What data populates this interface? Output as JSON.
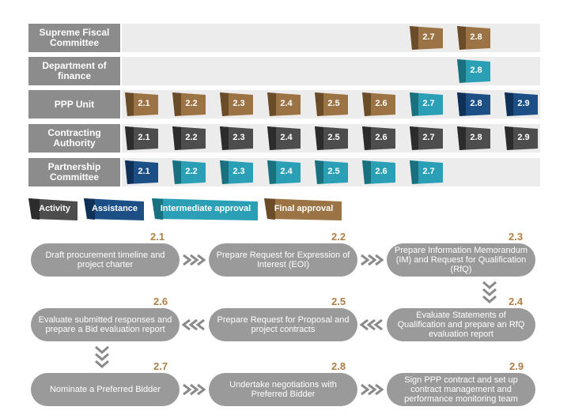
{
  "roles": [
    {
      "label": "Supreme Fiscal Committee",
      "steps": [
        {
          "n": "2.7",
          "type": "final"
        },
        {
          "n": "2.8",
          "type": "final"
        }
      ]
    },
    {
      "label": "Department of finance",
      "steps": [
        {
          "n": "2.8",
          "type": "intermediate"
        }
      ]
    },
    {
      "label": "PPP Unit",
      "steps": [
        {
          "n": "2.1",
          "type": "final"
        },
        {
          "n": "2.2",
          "type": "final"
        },
        {
          "n": "2.3",
          "type": "final"
        },
        {
          "n": "2.4",
          "type": "final"
        },
        {
          "n": "2.5",
          "type": "final"
        },
        {
          "n": "2.6",
          "type": "final"
        },
        {
          "n": "2.7",
          "type": "intermediate"
        },
        {
          "n": "2.8",
          "type": "assistance"
        },
        {
          "n": "2.9",
          "type": "assistance"
        }
      ]
    },
    {
      "label": "Contracting Authority",
      "steps": [
        {
          "n": "2.1",
          "type": "activity"
        },
        {
          "n": "2.2",
          "type": "activity"
        },
        {
          "n": "2.3",
          "type": "activity"
        },
        {
          "n": "2.4",
          "type": "activity"
        },
        {
          "n": "2.5",
          "type": "activity"
        },
        {
          "n": "2.6",
          "type": "activity"
        },
        {
          "n": "2.7",
          "type": "activity"
        },
        {
          "n": "2.8",
          "type": "activity"
        },
        {
          "n": "2.9",
          "type": "activity"
        }
      ]
    },
    {
      "label": "Partnership Committee",
      "steps": [
        {
          "n": "2.1",
          "type": "assistance"
        },
        {
          "n": "2.2",
          "type": "intermediate"
        },
        {
          "n": "2.3",
          "type": "intermediate"
        },
        {
          "n": "2.4",
          "type": "intermediate"
        },
        {
          "n": "2.5",
          "type": "intermediate"
        },
        {
          "n": "2.6",
          "type": "intermediate"
        },
        {
          "n": "2.7",
          "type": "intermediate"
        }
      ]
    }
  ],
  "legend": [
    {
      "key": "activity",
      "label": "Activity"
    },
    {
      "key": "assistance",
      "label": "Assistance"
    },
    {
      "key": "intermediate",
      "label": "Intermediate approval"
    },
    {
      "key": "final",
      "label": "Final approval"
    }
  ],
  "colors": {
    "activity": "#4d4d4d",
    "assistance": "#1c4f86",
    "intermediate": "#2a9fb6",
    "final": "#9b7344",
    "step_number": "#b07f45",
    "pill": "#9a9a9a",
    "chevron": "#8a8a8a"
  },
  "process": [
    {
      "n": "2.1",
      "text": "Draft procurement timeline and project charter"
    },
    {
      "n": "2.2",
      "text": "Prepare Request for Expression of Interest (EOI)"
    },
    {
      "n": "2.3",
      "text": "Prepare Information Memorandum (IM) and Request for Qualification (RfQ)"
    },
    {
      "n": "2.4",
      "text": "Evaluate Statements of Qualification and prepare an RfQ evaluation report"
    },
    {
      "n": "2.5",
      "text": "Prepare Request for Proposal and project contracts"
    },
    {
      "n": "2.6",
      "text": "Evaluate submitted responses and prepare a Bid evaluation report"
    },
    {
      "n": "2.7",
      "text": "Nominate a Preferred Bidder"
    },
    {
      "n": "2.8",
      "text": "Undertake negotiations with Preferred Bidder"
    },
    {
      "n": "2.9",
      "text": "Sign PPP contract and set up contract management and performance monitoring team"
    }
  ]
}
